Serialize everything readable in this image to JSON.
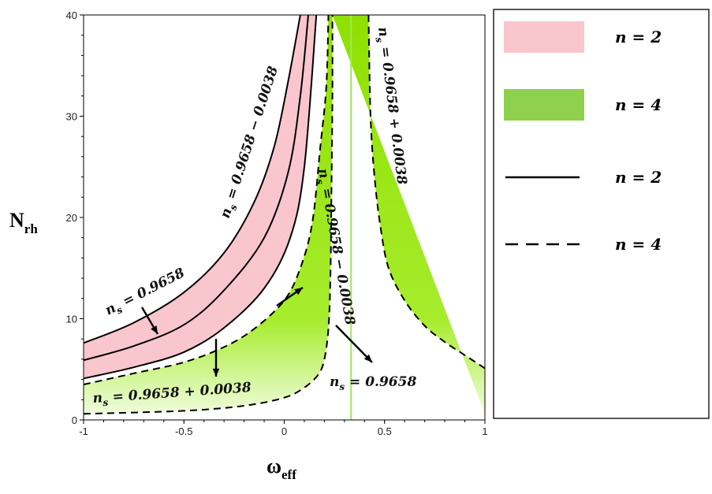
{
  "chart_data": {
    "type": "area",
    "xlabel": "ω",
    "xlabel_sub": "eff",
    "ylabel": "N",
    "ylabel_sub": "rh",
    "xlim": [
      -1,
      1
    ],
    "ylim": [
      0,
      40
    ],
    "xticks": [
      "-1",
      "-0.5",
      "0",
      "0.5",
      "1"
    ],
    "yticks": [
      "0",
      "10",
      "20",
      "30",
      "40"
    ],
    "colors": {
      "n2_region": "#f9c6cd",
      "n4_region": "#8fe000",
      "n4_region_light": "#eafbd0",
      "line": "#000000"
    },
    "curves": [
      {
        "series": "n=2",
        "style": "solid",
        "label_ns": "0.9658 − 0.0038",
        "omega_pole": 0.08,
        "points": [
          [
            -1,
            7.6
          ],
          [
            -0.75,
            9.6
          ],
          [
            -0.5,
            12.6
          ],
          [
            -0.3,
            16.5
          ],
          [
            -0.15,
            21.5
          ],
          [
            -0.05,
            27
          ],
          [
            0.02,
            33.5
          ],
          [
            0.08,
            40
          ]
        ]
      },
      {
        "series": "n=2",
        "style": "solid",
        "label_ns": "0.9658",
        "omega_pole": 0.12,
        "points": [
          [
            -1,
            5.9
          ],
          [
            -0.75,
            7.3
          ],
          [
            -0.5,
            9.4
          ],
          [
            -0.3,
            12.8
          ],
          [
            -0.1,
            18
          ],
          [
            0.02,
            24.5
          ],
          [
            0.08,
            32
          ],
          [
            0.12,
            40
          ]
        ]
      },
      {
        "series": "n=2",
        "style": "solid",
        "label_ns": "0.9658 + 0.0038",
        "omega_pole": 0.16,
        "points": [
          [
            -1,
            4.1
          ],
          [
            -0.75,
            5.2
          ],
          [
            -0.5,
            6.7
          ],
          [
            -0.3,
            9.1
          ],
          [
            -0.1,
            13
          ],
          [
            0.03,
            18
          ],
          [
            0.1,
            25
          ],
          [
            0.16,
            40
          ]
        ]
      },
      {
        "series": "n=4",
        "style": "dashed",
        "label_ns": "0.9658 + 0.0038",
        "omega_pole": 0.22,
        "points": [
          [
            -1,
            3.5
          ],
          [
            -0.75,
            4.6
          ],
          [
            -0.5,
            5.7
          ],
          [
            -0.3,
            7.2
          ],
          [
            -0.15,
            9
          ],
          [
            0.0,
            11.8
          ],
          [
            0.08,
            15
          ],
          [
            0.14,
            19.5
          ],
          [
            0.18,
            27
          ],
          [
            0.21,
            33
          ],
          [
            0.22,
            40
          ]
        ]
      },
      {
        "series": "n=4",
        "style": "dashed",
        "label_ns": "0.9658 − 0.0038",
        "omega_pole": 0.24,
        "points": [
          [
            -1,
            0.6
          ],
          [
            -0.5,
            0.9
          ],
          [
            -0.2,
            1.4
          ],
          [
            0.0,
            2.2
          ],
          [
            0.1,
            3.2
          ],
          [
            0.17,
            4.5
          ],
          [
            0.2,
            6
          ],
          [
            0.22,
            9
          ],
          [
            0.23,
            14
          ],
          [
            0.235,
            22
          ],
          [
            0.24,
            32
          ],
          [
            0.24,
            40
          ]
        ]
      },
      {
        "series": "n=4",
        "style": "dashed",
        "label_ns": "0.9658",
        "omega_pole": 0.42,
        "points": [
          [
            0.42,
            40
          ],
          [
            0.43,
            30
          ],
          [
            0.45,
            24
          ],
          [
            0.48,
            19
          ],
          [
            0.52,
            15
          ],
          [
            0.6,
            11.8
          ],
          [
            0.7,
            9.3
          ],
          [
            0.8,
            7.7
          ],
          [
            0.9,
            6.4
          ],
          [
            1.0,
            5.1
          ]
        ]
      }
    ],
    "vertical_line_omega": 0.333,
    "annotations": [
      {
        "label": "n_s = 0.9658",
        "series": "n=2",
        "text": "0.9658"
      },
      {
        "label": "n_s = 0.9658 − 0.0038",
        "series": "n=2",
        "text": "0.9658 − 0.0038"
      },
      {
        "label": "n_s = 0.9658 + 0.0038",
        "series": "n=2",
        "text": "0.9658 + 0.0038"
      },
      {
        "label": "n_s = 0.9658 − 0.0038",
        "series": "n=4",
        "text": "0.9658 − 0.0038"
      },
      {
        "label": "n_s = 0.9658 + 0.0038",
        "series": "n=4",
        "text": "0.9658 + 0.0038"
      },
      {
        "label": "n_s = 0.9658",
        "series": "n=4",
        "text": "0.9658"
      }
    ],
    "legend": {
      "placement": "right",
      "entries": [
        {
          "kind": "fill",
          "color": "#f9c6cd",
          "text": "n = 2"
        },
        {
          "kind": "fill",
          "color": "#8fd14f",
          "text": "n = 4"
        },
        {
          "kind": "solid-line",
          "color": "#000000",
          "text": "n = 2"
        },
        {
          "kind": "dashed-line",
          "color": "#000000",
          "text": "n = 4"
        }
      ]
    }
  }
}
